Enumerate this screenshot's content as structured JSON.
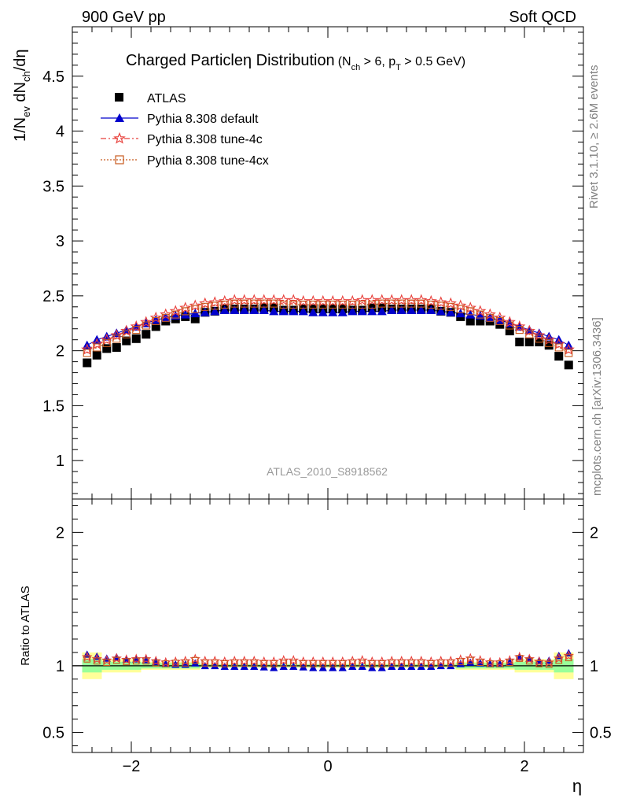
{
  "header": {
    "left": "900 GeV pp",
    "right": "Soft QCD"
  },
  "side_labels": {
    "rivet": "Rivet 3.1.10, ≥ 2.6M events",
    "mcplots": "mcplots.cern.ch [arXiv:1306.3436]"
  },
  "title": {
    "main": "Charged Particleη Distribution",
    "cond_open": "(N",
    "cond_sub1": "ch",
    "cond_mid": " > 6, p",
    "cond_sub2": "T",
    "cond_end": " > 0.5 GeV)"
  },
  "watermark": "ATLAS_2010_S8918562",
  "ylabel_main": {
    "a": "1/N",
    "a_sub": "ev",
    "b": " dN",
    "b_sub": "ch",
    "c": "/dη"
  },
  "ylabel_ratio": "Ratio to ATLAS",
  "xlabel": "η",
  "colors": {
    "atlas": "#000000",
    "default": "#0000cc",
    "tune4c": "#e8413c",
    "tune4cx": "#c85a1e",
    "band_inner": "#99ff99",
    "band_outer": "#ffff99"
  },
  "chart_data": [
    {
      "type": "scatter",
      "panel": "main",
      "ylim": [
        0.65,
        4.95
      ],
      "xlim": [
        -2.6,
        2.6
      ],
      "y_ticks": [
        1,
        1.5,
        2,
        2.5,
        3,
        3.5,
        4,
        4.5
      ],
      "y_tick_labels": [
        "1",
        "1.5",
        "2",
        "2.5",
        "3",
        "3.5",
        "4",
        "4.5"
      ],
      "legend_position": "top-left",
      "x": [
        -2.45,
        -2.35,
        -2.25,
        -2.15,
        -2.05,
        -1.95,
        -1.85,
        -1.75,
        -1.65,
        -1.55,
        -1.45,
        -1.35,
        -1.25,
        -1.15,
        -1.05,
        -0.95,
        -0.85,
        -0.75,
        -0.65,
        -0.55,
        -0.45,
        -0.35,
        -0.25,
        -0.15,
        -0.05,
        0.05,
        0.15,
        0.25,
        0.35,
        0.45,
        0.55,
        0.65,
        0.75,
        0.85,
        0.95,
        1.05,
        1.15,
        1.25,
        1.35,
        1.45,
        1.55,
        1.65,
        1.75,
        1.85,
        1.95,
        2.05,
        2.15,
        2.25,
        2.35,
        2.45
      ],
      "series": [
        {
          "name": "ATLAS",
          "marker": "square",
          "color": "#000000",
          "values": [
            1.89,
            1.96,
            2.02,
            2.03,
            2.09,
            2.11,
            2.15,
            2.22,
            2.27,
            2.29,
            2.31,
            2.29,
            2.35,
            2.36,
            2.38,
            2.38,
            2.38,
            2.38,
            2.39,
            2.39,
            2.37,
            2.37,
            2.38,
            2.38,
            2.38,
            2.38,
            2.38,
            2.37,
            2.37,
            2.39,
            2.39,
            2.38,
            2.38,
            2.38,
            2.38,
            2.38,
            2.36,
            2.35,
            2.31,
            2.27,
            2.27,
            2.27,
            2.24,
            2.18,
            2.08,
            2.08,
            2.08,
            2.05,
            1.95,
            1.87
          ]
        },
        {
          "name": "Pythia 8.308 default",
          "marker": "triangle",
          "line": "solid",
          "color": "#0000cc",
          "values": [
            2.05,
            2.1,
            2.13,
            2.16,
            2.19,
            2.22,
            2.25,
            2.28,
            2.3,
            2.32,
            2.33,
            2.34,
            2.35,
            2.36,
            2.37,
            2.37,
            2.37,
            2.37,
            2.37,
            2.36,
            2.36,
            2.36,
            2.36,
            2.35,
            2.35,
            2.35,
            2.35,
            2.36,
            2.36,
            2.36,
            2.36,
            2.37,
            2.37,
            2.37,
            2.37,
            2.37,
            2.36,
            2.35,
            2.34,
            2.33,
            2.32,
            2.3,
            2.28,
            2.25,
            2.22,
            2.19,
            2.16,
            2.13,
            2.1,
            2.05
          ]
        },
        {
          "name": "Pythia 8.308 tune-4c",
          "marker": "star",
          "line": "dashdot",
          "color": "#e8413c",
          "values": [
            2.01,
            2.06,
            2.1,
            2.14,
            2.18,
            2.22,
            2.26,
            2.3,
            2.33,
            2.36,
            2.39,
            2.41,
            2.43,
            2.44,
            2.45,
            2.46,
            2.46,
            2.46,
            2.46,
            2.46,
            2.46,
            2.46,
            2.45,
            2.45,
            2.45,
            2.45,
            2.45,
            2.45,
            2.46,
            2.46,
            2.46,
            2.46,
            2.46,
            2.46,
            2.46,
            2.45,
            2.44,
            2.43,
            2.41,
            2.39,
            2.36,
            2.33,
            2.3,
            2.26,
            2.22,
            2.18,
            2.14,
            2.1,
            2.06,
            2.01
          ]
        },
        {
          "name": "Pythia 8.308 tune-4cx",
          "marker": "open-square",
          "line": "dotted",
          "color": "#c85a1e",
          "values": [
            1.98,
            2.03,
            2.07,
            2.11,
            2.15,
            2.19,
            2.23,
            2.27,
            2.3,
            2.33,
            2.36,
            2.38,
            2.4,
            2.41,
            2.42,
            2.43,
            2.43,
            2.43,
            2.43,
            2.43,
            2.42,
            2.42,
            2.42,
            2.42,
            2.42,
            2.42,
            2.42,
            2.42,
            2.42,
            2.42,
            2.43,
            2.43,
            2.43,
            2.43,
            2.43,
            2.42,
            2.41,
            2.4,
            2.38,
            2.36,
            2.33,
            2.3,
            2.27,
            2.23,
            2.19,
            2.15,
            2.11,
            2.07,
            2.03,
            1.98
          ]
        }
      ]
    },
    {
      "type": "scatter",
      "panel": "ratio",
      "ylim": [
        0.35,
        2.25
      ],
      "xlim": [
        -2.6,
        2.6
      ],
      "ylabel": "Ratio to ATLAS",
      "xlabel": "η",
      "y_ticks": [
        0.5,
        1,
        2
      ],
      "y_tick_labels": [
        "0.5",
        "1",
        "2"
      ],
      "x_ticks": [
        -2,
        0,
        2
      ],
      "x_tick_labels": [
        "−2",
        "0",
        "2"
      ],
      "bands": [
        {
          "x_range": [
            -2.5,
            -2.3
          ],
          "inner": [
            0.95,
            1.05
          ],
          "outer": [
            0.9,
            1.1
          ]
        },
        {
          "x_range": [
            -2.3,
            -2.0
          ],
          "inner": [
            0.97,
            1.03
          ],
          "outer": [
            0.95,
            1.05
          ]
        },
        {
          "x_range": [
            -2.0,
            -1.9
          ],
          "inner": [
            0.97,
            1.03
          ],
          "outer": [
            0.95,
            1.05
          ]
        },
        {
          "x_range": [
            -1.9,
            -1.3
          ],
          "inner": [
            0.98,
            1.02
          ],
          "outer": [
            0.97,
            1.03
          ]
        },
        {
          "x_range": [
            -1.3,
            1.3
          ],
          "inner": [
            0.99,
            1.01
          ],
          "outer": [
            0.985,
            1.015
          ]
        },
        {
          "x_range": [
            1.3,
            1.9
          ],
          "inner": [
            0.98,
            1.02
          ],
          "outer": [
            0.97,
            1.03
          ]
        },
        {
          "x_range": [
            1.9,
            2.3
          ],
          "inner": [
            0.97,
            1.03
          ],
          "outer": [
            0.95,
            1.05
          ]
        },
        {
          "x_range": [
            2.3,
            2.5
          ],
          "inner": [
            0.95,
            1.05
          ],
          "outer": [
            0.9,
            1.1
          ]
        }
      ],
      "series": [
        {
          "name": "Pythia 8.308 default",
          "marker": "triangle",
          "color": "#0000cc",
          "values": [
            1.085,
            1.07,
            1.055,
            1.065,
            1.05,
            1.05,
            1.045,
            1.03,
            1.015,
            1.01,
            1.01,
            1.02,
            1.0,
            1.0,
            0.995,
            0.995,
            0.995,
            0.995,
            0.99,
            0.985,
            0.995,
            0.995,
            0.99,
            0.985,
            0.985,
            0.985,
            0.985,
            0.995,
            0.995,
            0.985,
            0.985,
            0.995,
            0.995,
            0.995,
            0.995,
            0.995,
            1.0,
            1.0,
            1.015,
            1.025,
            1.02,
            1.015,
            1.015,
            1.03,
            1.065,
            1.055,
            1.04,
            1.04,
            1.075,
            1.095
          ]
        },
        {
          "name": "Pythia 8.308 tune-4c",
          "marker": "star",
          "color": "#e8413c",
          "values": [
            1.065,
            1.05,
            1.04,
            1.055,
            1.045,
            1.05,
            1.05,
            1.035,
            1.025,
            1.03,
            1.035,
            1.05,
            1.035,
            1.035,
            1.03,
            1.035,
            1.035,
            1.035,
            1.03,
            1.03,
            1.04,
            1.04,
            1.03,
            1.03,
            1.03,
            1.03,
            1.03,
            1.035,
            1.04,
            1.03,
            1.03,
            1.035,
            1.035,
            1.035,
            1.035,
            1.03,
            1.035,
            1.035,
            1.045,
            1.055,
            1.04,
            1.025,
            1.025,
            1.04,
            1.065,
            1.05,
            1.03,
            1.025,
            1.055,
            1.075
          ]
        },
        {
          "name": "Pythia 8.308 tune-4cx",
          "marker": "open-square",
          "color": "#c85a1e",
          "values": [
            1.05,
            1.035,
            1.025,
            1.04,
            1.03,
            1.035,
            1.035,
            1.02,
            1.015,
            1.02,
            1.02,
            1.04,
            1.02,
            1.02,
            1.015,
            1.02,
            1.02,
            1.02,
            1.015,
            1.015,
            1.02,
            1.02,
            1.015,
            1.015,
            1.015,
            1.015,
            1.015,
            1.02,
            1.02,
            1.015,
            1.015,
            1.02,
            1.02,
            1.02,
            1.02,
            1.015,
            1.02,
            1.02,
            1.03,
            1.04,
            1.025,
            1.015,
            1.015,
            1.025,
            1.055,
            1.035,
            1.015,
            1.01,
            1.04,
            1.06
          ]
        }
      ]
    }
  ]
}
